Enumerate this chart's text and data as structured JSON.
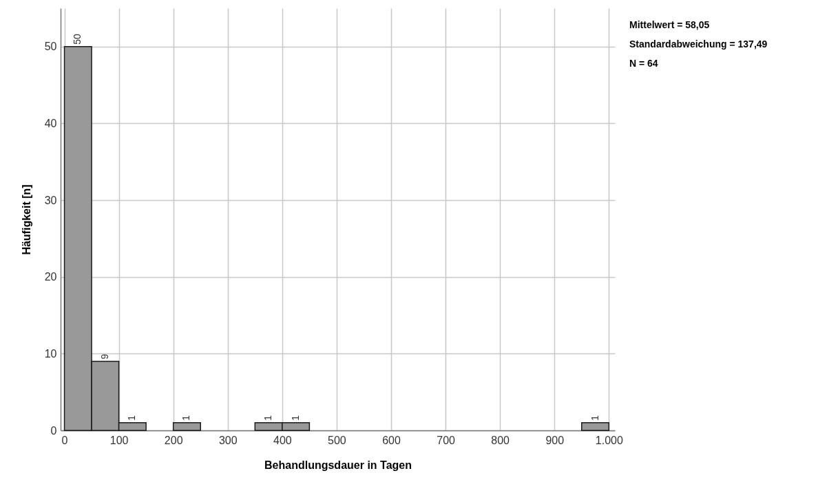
{
  "chart_data": {
    "type": "histogram",
    "xlabel": "Behandlungsdauer in Tagen",
    "ylabel": "Häufigkeit [n]",
    "bins": [
      0,
      50,
      100,
      150,
      200,
      250,
      300,
      350,
      400,
      450,
      500,
      550,
      600,
      650,
      700,
      750,
      800,
      850,
      900,
      950,
      1000
    ],
    "values": [
      50,
      9,
      1,
      0,
      1,
      0,
      0,
      1,
      1,
      0,
      0,
      0,
      0,
      0,
      0,
      0,
      0,
      0,
      0,
      1
    ],
    "value_labels": [
      "50",
      "9",
      "1",
      null,
      "1",
      null,
      null,
      "1",
      "1",
      null,
      null,
      null,
      null,
      null,
      null,
      null,
      null,
      null,
      null,
      "1"
    ],
    "color": "#999999",
    "grid": true,
    "xlim": [
      -7,
      1011
    ],
    "xticks": [
      0,
      100,
      200,
      300,
      400,
      500,
      600,
      700,
      800,
      900,
      {
        "value": 1000,
        "label": "1.000"
      }
    ],
    "ylim": [
      0,
      55
    ],
    "yticks": [
      0,
      10,
      20,
      30,
      40,
      50
    ],
    "annotations": [
      "Mittelwert = 58,05",
      "Standardabweichung = 137,49",
      "N = 64"
    ]
  }
}
